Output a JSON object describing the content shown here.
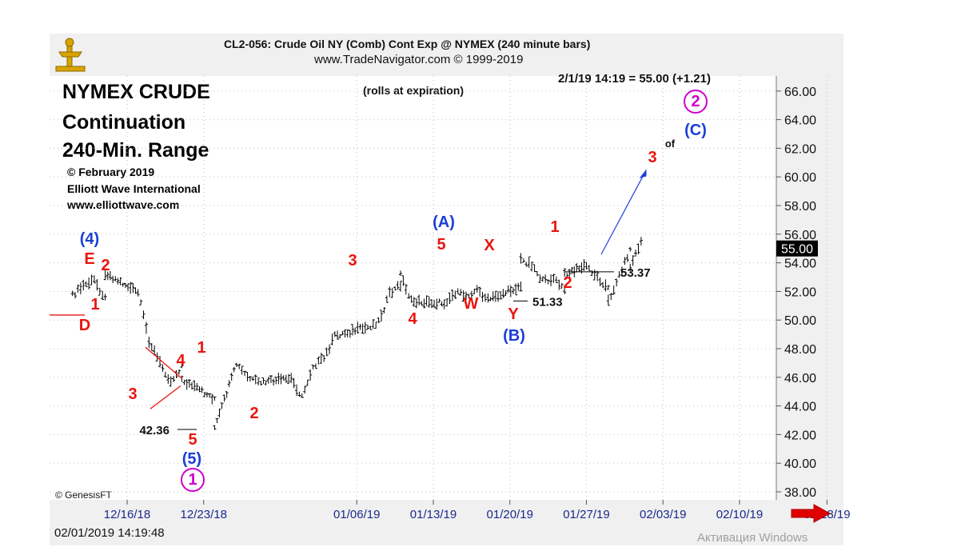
{
  "header": {
    "line1": "CL2-056: Crude Oil NY (Comb) Cont Exp @ NYMEX (240 minute bars)",
    "line2": "www.TradeNavigator.com © 1999-2019",
    "quote": "2/1/19 14:19 = 55.00 (+1.21)",
    "note": "(rolls at expiration)"
  },
  "title_block": {
    "line1": "NYMEX CRUDE",
    "line2": "Continuation",
    "line3": "240-Min. Range",
    "copyright": "© February 2019",
    "org": "Elliott Wave International",
    "url": "www.elliottwave.com"
  },
  "footer": {
    "source": "© GenesisFT",
    "timestamp": "02/01/2019 14:19:48",
    "watermark": "Активация Windows"
  },
  "colors": {
    "wave_red": "#e8150e",
    "wave_blue": "#1a3fd6",
    "wave_magenta": "#cc00cc",
    "bars": "#000000",
    "price_box": "#000000",
    "arrow": "#e00000"
  },
  "chart_data": {
    "type": "line",
    "subtype": "price-bars (OHLC)",
    "y_axis": {
      "ticks": [
        "38.00",
        "40.00",
        "42.00",
        "44.00",
        "46.00",
        "48.00",
        "50.00",
        "52.00",
        "54.00",
        "56.00",
        "58.00",
        "60.00",
        "62.00",
        "64.00",
        "66.00"
      ],
      "range": [
        37.5,
        67.5
      ],
      "side": "right",
      "last_price_label": "55.00"
    },
    "x_axis": {
      "ticks": [
        "12/16/18",
        "12/23/18",
        "01/06/19",
        "01/13/19",
        "01/20/19",
        "01/27/19",
        "02/03/19",
        "02/10/19",
        "02/18/19"
      ]
    },
    "grid": true,
    "price_path": [
      [
        "12/11/18",
        51.7
      ],
      [
        "12/12/18",
        52.4
      ],
      [
        "12/13/18",
        52.8
      ],
      [
        "12/14/18",
        51.5
      ],
      [
        "12/14/18",
        53.3
      ],
      [
        "12/17/18",
        51.9
      ],
      [
        "12/18/18",
        48.6
      ],
      [
        "12/19/18",
        47.0
      ],
      [
        "12/20/18",
        45.7
      ],
      [
        "12/21/18",
        46.8
      ],
      [
        "12/21/18",
        45.8
      ],
      [
        "12/24/18",
        44.5
      ],
      [
        "12/24/18",
        42.4
      ],
      [
        "12/26/18",
        46.9
      ],
      [
        "12/27/18",
        46.0
      ],
      [
        "12/28/18",
        45.6
      ],
      [
        "12/31/18",
        45.9
      ],
      [
        "01/01/19",
        44.6
      ],
      [
        "01/02/19",
        46.8
      ],
      [
        "01/03/19",
        47.3
      ],
      [
        "01/04/19",
        48.9
      ],
      [
        "01/07/19",
        49.5
      ],
      [
        "01/08/19",
        49.9
      ],
      [
        "01/09/19",
        51.8
      ],
      [
        "01/10/19",
        52.5
      ],
      [
        "01/10/19",
        53.2
      ],
      [
        "01/11/19",
        51.3
      ],
      [
        "01/14/19",
        51.2
      ],
      [
        "01/15/19",
        51.9
      ],
      [
        "01/16/19",
        51.7
      ],
      [
        "01/17/19",
        52.1
      ],
      [
        "01/18/19",
        51.4
      ],
      [
        "01/21/19",
        52.4
      ],
      [
        "01/21/19",
        54.2
      ],
      [
        "01/22/19",
        53.9
      ],
      [
        "01/23/19",
        52.7
      ],
      [
        "01/24/19",
        52.9
      ],
      [
        "01/25/19",
        52.1
      ],
      [
        "01/25/19",
        53.2
      ],
      [
        "01/27/19",
        53.8
      ],
      [
        "01/28/19",
        53.0
      ],
      [
        "01/29/19",
        52.2
      ],
      [
        "01/29/19",
        51.3
      ],
      [
        "01/30/19",
        53.1
      ],
      [
        "01/31/19",
        54.9
      ],
      [
        "01/31/19",
        53.7
      ],
      [
        "02/01/19",
        55.5
      ],
      [
        "02/01/19",
        55.0
      ]
    ],
    "levels": [
      {
        "label": "53.37",
        "value": 53.37
      },
      {
        "label": "51.33",
        "value": 51.33
      },
      {
        "label": "42.36",
        "value": 42.36
      }
    ],
    "wave_labels": [
      {
        "text": "(4)",
        "color": "blue"
      },
      {
        "text": "E",
        "color": "red"
      },
      {
        "text": "2",
        "color": "red"
      },
      {
        "text": "1",
        "color": "red"
      },
      {
        "text": "D",
        "color": "red"
      },
      {
        "text": "3",
        "color": "red"
      },
      {
        "text": "4",
        "color": "red"
      },
      {
        "text": "1",
        "color": "red"
      },
      {
        "text": "5",
        "color": "red"
      },
      {
        "text": "(5)",
        "color": "blue"
      },
      {
        "text": "1",
        "color": "magenta-circle"
      },
      {
        "text": "2",
        "color": "red"
      },
      {
        "text": "3",
        "color": "red"
      },
      {
        "text": "4",
        "color": "red"
      },
      {
        "text": "(A)",
        "color": "blue"
      },
      {
        "text": "5",
        "color": "red"
      },
      {
        "text": "W",
        "color": "red"
      },
      {
        "text": "X",
        "color": "red"
      },
      {
        "text": "Y",
        "color": "red"
      },
      {
        "text": "(B)",
        "color": "blue"
      },
      {
        "text": "1",
        "color": "red"
      },
      {
        "text": "2",
        "color": "red"
      },
      {
        "text": "3",
        "color": "red"
      },
      {
        "text": "of",
        "color": "black"
      },
      {
        "text": "(C)",
        "color": "blue"
      },
      {
        "text": "2",
        "color": "magenta-circle"
      }
    ]
  }
}
